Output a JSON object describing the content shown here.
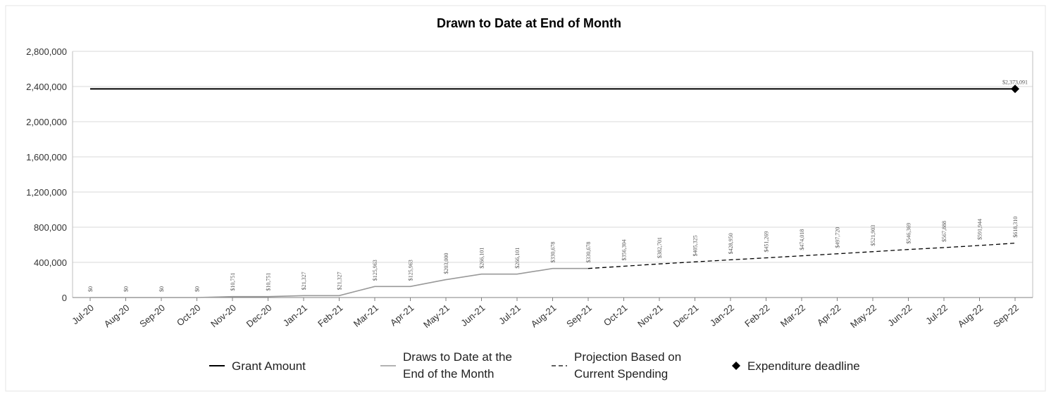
{
  "chart_data": {
    "type": "line",
    "title": "Drawn to Date at End of Month",
    "ylim": [
      0,
      2800000
    ],
    "yticks": [
      "0",
      "400,000",
      "800,000",
      "1,200,000",
      "1,600,000",
      "2,000,000",
      "2,400,000",
      "2,800,000"
    ],
    "ytick_values": [
      0,
      400000,
      800000,
      1200000,
      1600000,
      2000000,
      2400000,
      2800000
    ],
    "categories": [
      "Jul-20",
      "Aug-20",
      "Sep-20",
      "Oct-20",
      "Nov-20",
      "Dec-20",
      "Jan-21",
      "Feb-21",
      "Mar-21",
      "Apr-21",
      "May-21",
      "Jun-21",
      "Jul-21",
      "Aug-21",
      "Sep-21",
      "Oct-21",
      "Nov-21",
      "Dec-21",
      "Jan-22",
      "Feb-22",
      "Mar-22",
      "Apr-22",
      "May-22",
      "Jun-22",
      "Jul-22",
      "Aug-22",
      "Sep-22"
    ],
    "grid": true,
    "legend_position": "bottom",
    "series": [
      {
        "name": "Grant Amount",
        "style": "solid-black",
        "color": "#000000",
        "values": [
          2373091,
          2373091,
          2373091,
          2373091,
          2373091,
          2373091,
          2373091,
          2373091,
          2373091,
          2373091,
          2373091,
          2373091,
          2373091,
          2373091,
          2373091,
          2373091,
          2373091,
          2373091,
          2373091,
          2373091,
          2373091,
          2373091,
          2373091,
          2373091,
          2373091,
          2373091,
          2373091
        ]
      },
      {
        "name": "Draws to Date at the End of the Month",
        "legend_lines": [
          "Draws to Date at the",
          "End of the Month"
        ],
        "style": "solid-gray",
        "color": "#999999",
        "values": [
          0,
          0,
          0,
          0,
          10751,
          10751,
          21327,
          21327,
          125963,
          125963,
          203000,
          266101,
          266101,
          330678,
          330678,
          null,
          null,
          null,
          null,
          null,
          null,
          null,
          null,
          null,
          null,
          null,
          null
        ],
        "data_labels": [
          "$0",
          "$0",
          "$0",
          "$0",
          "$10,751",
          "$10,751",
          "$21,327",
          "$21,327",
          "$125,963",
          "$125,963",
          "$203,000",
          "$266,101",
          "$266,101",
          "$330,678",
          "$330,678",
          "",
          "",
          "",
          "",
          "",
          "",
          "",
          "",
          "",
          "",
          "",
          ""
        ]
      },
      {
        "name": "Projection Based on Current Spending",
        "legend_lines": [
          "Projection Based on",
          "Current Spending"
        ],
        "style": "dashed-black",
        "color": "#000000",
        "values": [
          null,
          null,
          null,
          null,
          null,
          null,
          null,
          null,
          null,
          null,
          null,
          null,
          null,
          null,
          330678,
          356304,
          382701,
          405325,
          428950,
          451269,
          474018,
          497720,
          521903,
          546369,
          567888,
          591944,
          618310
        ],
        "data_labels": [
          "",
          "",
          "",
          "",
          "",
          "",
          "",
          "",
          "",
          "",
          "",
          "",
          "",
          "",
          "",
          "$356,304",
          "$382,701",
          "$405,325",
          "$428,950",
          "$451,269",
          "$474,018",
          "$497,720",
          "$521,903",
          "$546,369",
          "$567,888",
          "$591,944",
          "$618,310"
        ]
      },
      {
        "name": "Expenditure deadline",
        "style": "diamond-marker",
        "color": "#000000",
        "points": [
          {
            "x": "Sep-22",
            "y": 2373091,
            "label": "$2,373,091"
          }
        ]
      }
    ]
  }
}
